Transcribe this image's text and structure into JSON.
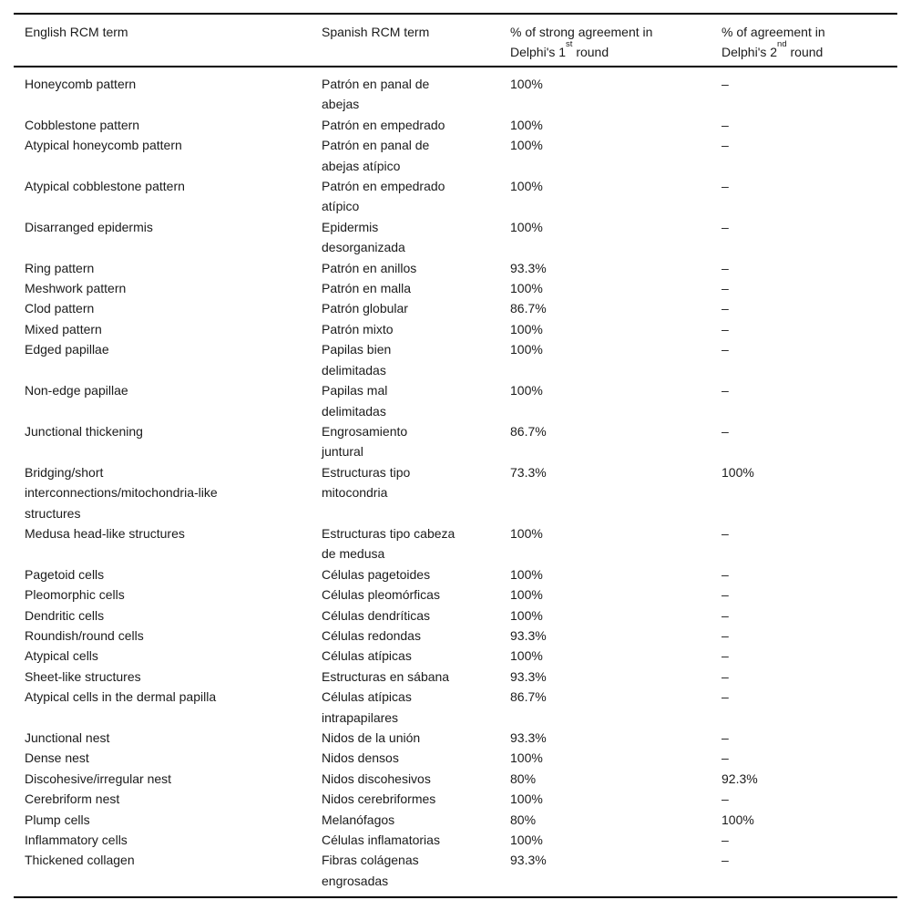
{
  "colors": {
    "background": "#ffffff",
    "text": "#1b1b1b",
    "rule": "#000000"
  },
  "table": {
    "columns": [
      {
        "label": "English RCM term"
      },
      {
        "label": "Spanish RCM term"
      },
      {
        "line1": "% of strong agreement in",
        "line2_pre": "Delphi's 1",
        "sup": "st",
        "line2_post": " round"
      },
      {
        "line1": "% of agreement in",
        "line2_pre": "Delphi's 2",
        "sup": "nd",
        "line2_post": " round"
      }
    ],
    "rows": [
      {
        "english": "Honeycomb pattern",
        "spanish": "Patrón en panal de\nabejas",
        "round1": "100%",
        "round2": "–"
      },
      {
        "english": "Cobblestone pattern",
        "spanish": "Patrón en empedrado",
        "round1": "100%",
        "round2": "–"
      },
      {
        "english": "Atypical honeycomb pattern",
        "spanish": "Patrón en panal de\nabejas atípico",
        "round1": "100%",
        "round2": "–"
      },
      {
        "english": "Atypical cobblestone pattern",
        "spanish": "Patrón en empedrado\natípico",
        "round1": "100%",
        "round2": "–"
      },
      {
        "english": "Disarranged epidermis",
        "spanish": "Epidermis\ndesorganizada",
        "round1": "100%",
        "round2": "–"
      },
      {
        "english": "Ring pattern",
        "spanish": "Patrón en anillos",
        "round1": "93.3%",
        "round2": "–"
      },
      {
        "english": "Meshwork pattern",
        "spanish": "Patrón en malla",
        "round1": "100%",
        "round2": "–"
      },
      {
        "english": "Clod pattern",
        "spanish": "Patrón globular",
        "round1": "86.7%",
        "round2": "–"
      },
      {
        "english": "Mixed pattern",
        "spanish": "Patrón mixto",
        "round1": "100%",
        "round2": "–"
      },
      {
        "english": "Edged papillae",
        "spanish": "Papilas bien\ndelimitadas",
        "round1": "100%",
        "round2": "–"
      },
      {
        "english": "Non-edge papillae",
        "spanish": "Papilas mal\ndelimitadas",
        "round1": "100%",
        "round2": "–"
      },
      {
        "english": "Junctional thickening",
        "spanish": "Engrosamiento\njuntural",
        "round1": "86.7%",
        "round2": "–"
      },
      {
        "english": "Bridging/short\ninterconnections/mitochondria-like\nstructures",
        "spanish": "Estructuras tipo\nmitocondria",
        "round1": "73.3%",
        "round2": "100%"
      },
      {
        "english": "Medusa head-like structures",
        "spanish": "Estructuras tipo cabeza\nde medusa",
        "round1": "100%",
        "round2": "–"
      },
      {
        "english": "Pagetoid cells",
        "spanish": "Células pagetoides",
        "round1": "100%",
        "round2": "–"
      },
      {
        "english": "Pleomorphic cells",
        "spanish": "Células pleomórficas",
        "round1": "100%",
        "round2": "–"
      },
      {
        "english": "Dendritic cells",
        "spanish": "Células dendríticas",
        "round1": "100%",
        "round2": "–"
      },
      {
        "english": "Roundish/round cells",
        "spanish": "Células redondas",
        "round1": "93.3%",
        "round2": "–"
      },
      {
        "english": "Atypical cells",
        "spanish": "Células atípicas",
        "round1": "100%",
        "round2": "–"
      },
      {
        "english": "Sheet-like structures",
        "spanish": "Estructuras en sábana",
        "round1": "93.3%",
        "round2": "–"
      },
      {
        "english": "Atypical cells in the dermal papilla",
        "spanish": "Células atípicas\nintrapapilares",
        "round1": "86.7%",
        "round2": "–"
      },
      {
        "english": "Junctional nest",
        "spanish": "Nidos de la unión",
        "round1": "93.3%",
        "round2": "–"
      },
      {
        "english": "Dense nest",
        "spanish": "Nidos densos",
        "round1": "100%",
        "round2": "–"
      },
      {
        "english": "Discohesive/irregular nest",
        "spanish": "Nidos discohesivos",
        "round1": "80%",
        "round2": "92.3%"
      },
      {
        "english": "Cerebriform nest",
        "spanish": "Nidos cerebriformes",
        "round1": "100%",
        "round2": "–"
      },
      {
        "english": "Plump cells",
        "spanish": "Melanófagos",
        "round1": "80%",
        "round2": "100%"
      },
      {
        "english": "Inflammatory cells",
        "spanish": "Células inflamatorias",
        "round1": "100%",
        "round2": "–"
      },
      {
        "english": "Thickened collagen",
        "spanish": "Fibras colágenas\nengrosadas",
        "round1": "93.3%",
        "round2": "–"
      }
    ]
  }
}
